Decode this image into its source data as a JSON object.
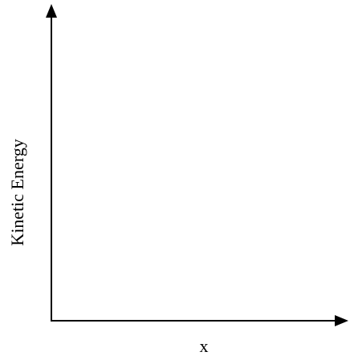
{
  "diagram": {
    "y_axis_label": "Kinetic Energy",
    "x_axis_label": "x",
    "axis_color": "#000000",
    "background_color": "#ffffff"
  }
}
